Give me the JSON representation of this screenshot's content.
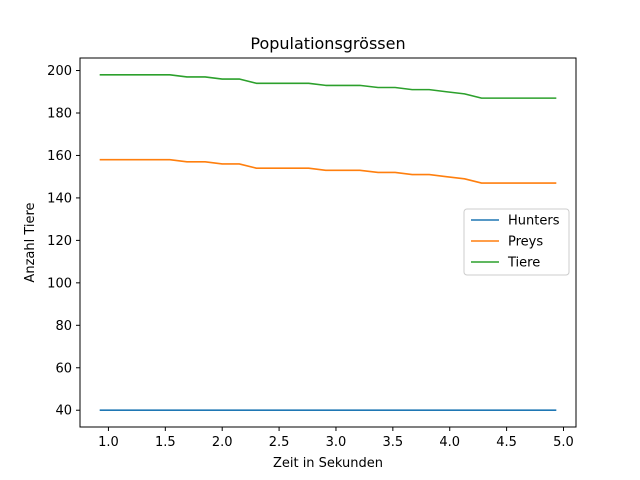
{
  "chart_data": {
    "type": "line",
    "title": "Populationsgrössen",
    "xlabel": "Zeit in Sekunden",
    "ylabel": "Anzahl Tiere",
    "xlim": [
      0.75,
      5.11
    ],
    "ylim": [
      32.1,
      205.9
    ],
    "xticks": [
      1.0,
      1.5,
      2.0,
      2.5,
      3.0,
      3.5,
      4.0,
      4.5,
      5.0
    ],
    "xtick_labels": [
      "1.0",
      "1.5",
      "2.0",
      "2.5",
      "3.0",
      "3.5",
      "4.0",
      "4.5",
      "5.0"
    ],
    "yticks": [
      40,
      60,
      80,
      100,
      120,
      140,
      160,
      180,
      200
    ],
    "ytick_labels": [
      "40",
      "60",
      "80",
      "100",
      "120",
      "140",
      "160",
      "180",
      "200"
    ],
    "grid": false,
    "legend_position": "center-right",
    "series": [
      {
        "name": "Hunters",
        "color": "#1f77b4",
        "x": [
          0.93,
          1.09,
          1.24,
          1.39,
          1.54,
          1.69,
          1.85,
          2.0,
          2.15,
          2.3,
          2.45,
          2.61,
          2.76,
          2.91,
          3.06,
          3.21,
          3.37,
          3.52,
          3.67,
          3.82,
          3.97,
          4.13,
          4.28,
          4.43,
          4.58,
          4.73,
          4.93
        ],
        "y": [
          40,
          40,
          40,
          40,
          40,
          40,
          40,
          40,
          40,
          40,
          40,
          40,
          40,
          40,
          40,
          40,
          40,
          40,
          40,
          40,
          40,
          40,
          40,
          40,
          40,
          40,
          40
        ]
      },
      {
        "name": "Preys",
        "color": "#ff7f0e",
        "x": [
          0.93,
          1.09,
          1.24,
          1.39,
          1.54,
          1.69,
          1.85,
          2.0,
          2.15,
          2.3,
          2.45,
          2.61,
          2.76,
          2.91,
          3.06,
          3.21,
          3.37,
          3.52,
          3.67,
          3.82,
          3.97,
          4.13,
          4.28,
          4.43,
          4.58,
          4.73,
          4.93
        ],
        "y": [
          158,
          158,
          158,
          158,
          158,
          157,
          157,
          156,
          156,
          154,
          154,
          154,
          154,
          153,
          153,
          153,
          152,
          152,
          151,
          151,
          150,
          149,
          147,
          147,
          147,
          147,
          147
        ]
      },
      {
        "name": "Tiere",
        "color": "#2ca02c",
        "x": [
          0.93,
          1.09,
          1.24,
          1.39,
          1.54,
          1.69,
          1.85,
          2.0,
          2.15,
          2.3,
          2.45,
          2.61,
          2.76,
          2.91,
          3.06,
          3.21,
          3.37,
          3.52,
          3.67,
          3.82,
          3.97,
          4.13,
          4.28,
          4.43,
          4.58,
          4.73,
          4.93
        ],
        "y": [
          198,
          198,
          198,
          198,
          198,
          197,
          197,
          196,
          196,
          194,
          194,
          194,
          194,
          193,
          193,
          193,
          192,
          192,
          191,
          191,
          190,
          189,
          187,
          187,
          187,
          187,
          187
        ]
      }
    ]
  }
}
